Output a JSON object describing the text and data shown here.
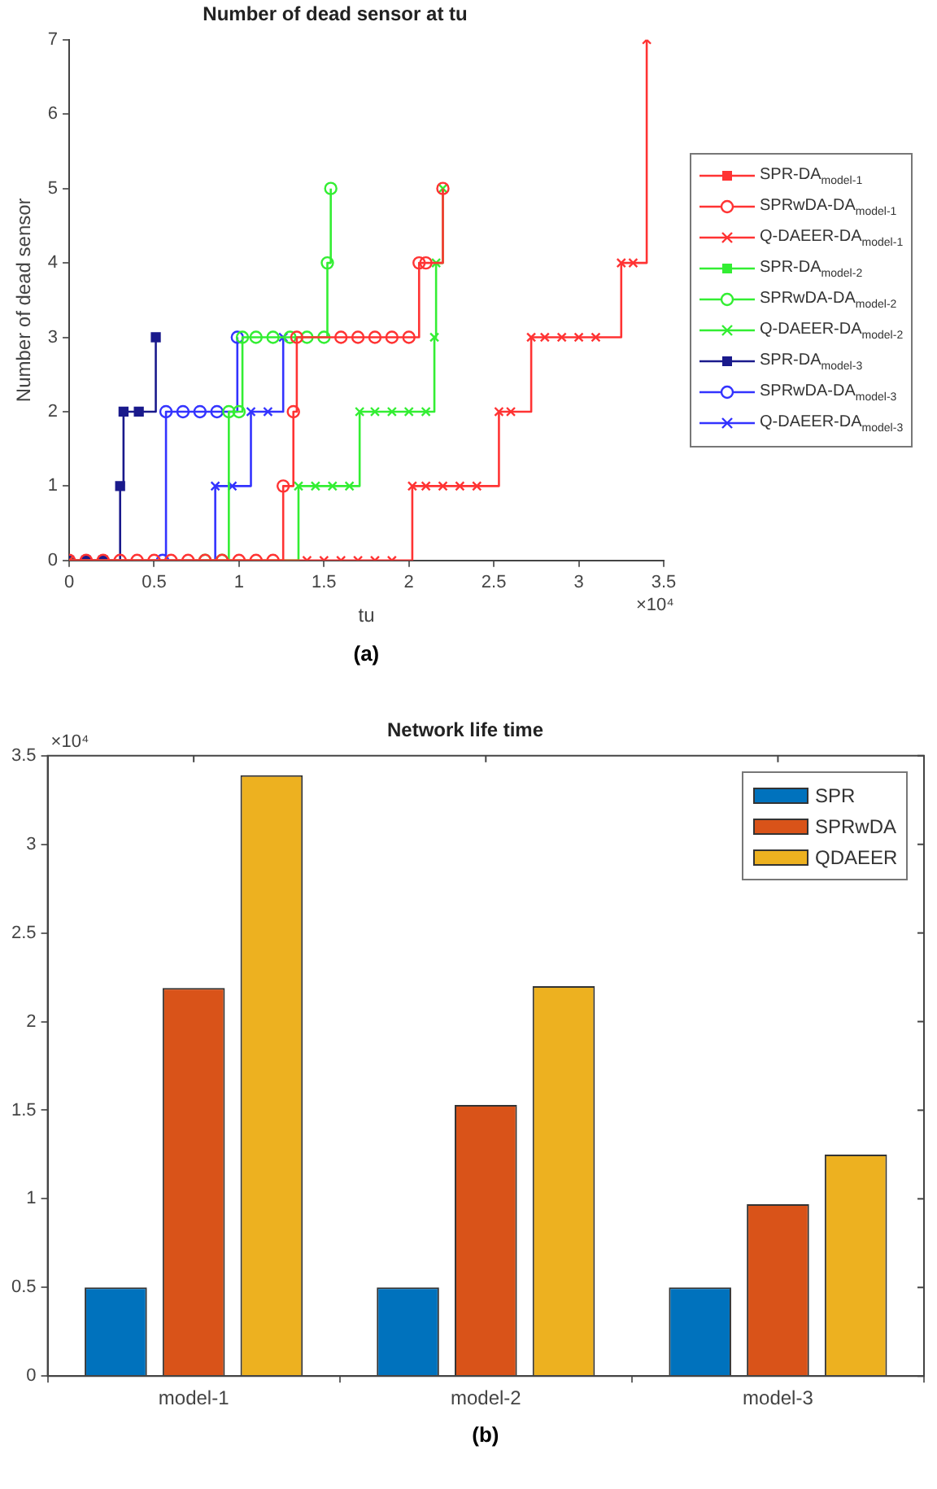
{
  "chart_data": [
    {
      "type": "step",
      "title": "Number of dead sensor at tu",
      "xlabel": "tu",
      "ylabel": "Number of dead sensor",
      "xlim": [
        0,
        3.5
      ],
      "xticks": [
        0,
        0.5,
        1,
        1.5,
        2,
        2.5,
        3,
        3.5
      ],
      "ylim": [
        0,
        7
      ],
      "yticks": [
        0,
        1,
        2,
        3,
        4,
        5,
        6,
        7
      ],
      "grid": false,
      "legend": "right",
      "annotations": [
        "×10⁴",
        "(a)"
      ],
      "series": [
        {
          "name": "SPR-DA$_{model-1}$",
          "color": "#ff3333",
          "marker": "square",
          "x": [
            null
          ],
          "values": [
            null
          ]
        },
        {
          "name": "SPRwDA-DA$_{model-1}$",
          "color": "#ff3333",
          "marker": "circle",
          "x": [
            0,
            0.1,
            0.2,
            0.3,
            0.4,
            0.5,
            0.6,
            0.7,
            0.8,
            0.9,
            1.0,
            1.1,
            1.2,
            1.26,
            1.32,
            1.34,
            1.6,
            1.7,
            1.8,
            1.9,
            2.0,
            2.06,
            2.1,
            2.2
          ],
          "values": [
            0,
            0,
            0,
            0,
            0,
            0,
            0,
            0,
            0,
            0,
            0,
            0,
            0,
            1,
            2,
            3,
            3,
            3,
            3,
            3,
            3,
            4,
            4,
            5
          ]
        },
        {
          "name": "Q-DAEER-DA$_{model-1}$",
          "color": "#ff3333",
          "marker": "cross",
          "x": [
            0,
            1.4,
            1.5,
            1.6,
            1.7,
            1.8,
            1.9,
            2.02,
            2.1,
            2.2,
            2.3,
            2.4,
            2.53,
            2.6,
            2.72,
            2.8,
            2.9,
            3.0,
            3.1,
            3.25,
            3.32,
            3.4
          ],
          "values": [
            0,
            0,
            0,
            0,
            0,
            0,
            0,
            1,
            1,
            1,
            1,
            1,
            2,
            2,
            3,
            3,
            3,
            3,
            3,
            4,
            4,
            7
          ]
        },
        {
          "name": "SPR-DA$_{model-2}$",
          "color": "#33ee33",
          "marker": "square",
          "x": [
            null
          ],
          "values": [
            null
          ]
        },
        {
          "name": "SPRwDA-DA$_{model-2}$",
          "color": "#33ee33",
          "marker": "circle",
          "x": [
            0.8,
            0.9,
            0.94,
            1.0,
            1.02,
            1.1,
            1.2,
            1.3,
            1.4,
            1.5,
            1.52,
            1.54
          ],
          "values": [
            0,
            0,
            2,
            2,
            3,
            3,
            3,
            3,
            3,
            3,
            4,
            5
          ]
        },
        {
          "name": "Q-DAEER-DA$_{model-2}$",
          "color": "#33ee33",
          "marker": "cross",
          "x": [
            0,
            1.35,
            1.45,
            1.55,
            1.65,
            1.71,
            1.8,
            1.9,
            2.0,
            2.1,
            2.15,
            2.16,
            2.2
          ],
          "values": [
            0,
            1,
            1,
            1,
            1,
            2,
            2,
            2,
            2,
            2,
            3,
            4,
            5
          ]
        },
        {
          "name": "SPR-DA$_{model-3}$",
          "color": "#1a1a8c",
          "marker": "square",
          "x": [
            0,
            0.1,
            0.2,
            0.3,
            0.32,
            0.41,
            0.51
          ],
          "values": [
            0,
            0,
            0,
            1,
            2,
            2,
            3
          ]
        },
        {
          "name": "SPRwDA-DA$_{model-3}$",
          "color": "#3333ff",
          "marker": "circle",
          "x": [
            0.55,
            0.57,
            0.67,
            0.77,
            0.87,
            0.99
          ],
          "values": [
            0,
            2,
            2,
            2,
            2,
            3
          ]
        },
        {
          "name": "Q-DAEER-DA$_{model-3}$",
          "color": "#3333ff",
          "marker": "cross",
          "x": [
            0,
            0.86,
            0.96,
            1.07,
            1.17,
            1.26
          ],
          "values": [
            0,
            1,
            1,
            2,
            2,
            3
          ]
        }
      ]
    },
    {
      "type": "bar",
      "title": "Network life time",
      "categories": [
        "model-1",
        "model-2",
        "model-3"
      ],
      "ylim": [
        0,
        3.5
      ],
      "yticks": [
        0,
        0.5,
        1,
        1.5,
        2,
        2.5,
        3,
        3.5
      ],
      "grid": false,
      "legend": "top right",
      "annotations": [
        "×10⁴",
        "(b)"
      ],
      "series": [
        {
          "name": "SPR",
          "color": "#0072bd",
          "values": [
            0.5,
            0.5,
            0.5
          ]
        },
        {
          "name": "SPRwDA",
          "color": "#d95319",
          "values": [
            2.19,
            1.53,
            0.97
          ]
        },
        {
          "name": "QDAEER",
          "color": "#edb120",
          "values": [
            3.39,
            2.2,
            1.25
          ]
        }
      ]
    }
  ]
}
